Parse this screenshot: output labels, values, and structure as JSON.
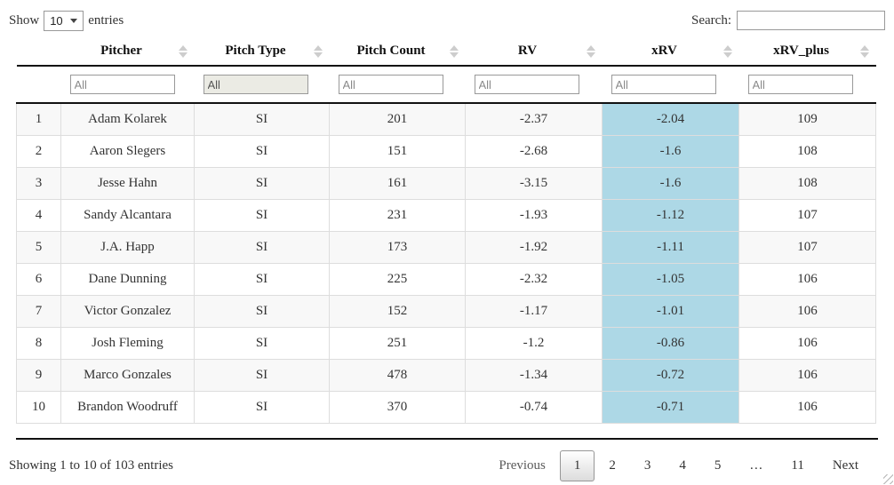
{
  "controls": {
    "show_label": "Show",
    "entries_label": "entries",
    "page_length": "10",
    "search_label": "Search:",
    "search_value": ""
  },
  "table": {
    "highlight_color": "#ADD8E6",
    "columns": [
      {
        "label": "Pitcher",
        "filter": "All",
        "filter_style": "text"
      },
      {
        "label": "Pitch Type",
        "filter": "All",
        "filter_style": "select"
      },
      {
        "label": "Pitch Count",
        "filter": "All",
        "filter_style": "text"
      },
      {
        "label": "RV",
        "filter": "All",
        "filter_style": "text"
      },
      {
        "label": "xRV",
        "filter": "All",
        "filter_style": "text"
      },
      {
        "label": "xRV_plus",
        "filter": "All",
        "filter_style": "text"
      }
    ],
    "rows": [
      {
        "index": "1",
        "pitcher": "Adam Kolarek",
        "pitch_type": "SI",
        "pitch_count": "201",
        "rv": "-2.37",
        "xrv": "-2.04",
        "xrv_plus": "109"
      },
      {
        "index": "2",
        "pitcher": "Aaron Slegers",
        "pitch_type": "SI",
        "pitch_count": "151",
        "rv": "-2.68",
        "xrv": "-1.6",
        "xrv_plus": "108"
      },
      {
        "index": "3",
        "pitcher": "Jesse Hahn",
        "pitch_type": "SI",
        "pitch_count": "161",
        "rv": "-3.15",
        "xrv": "-1.6",
        "xrv_plus": "108"
      },
      {
        "index": "4",
        "pitcher": "Sandy Alcantara",
        "pitch_type": "SI",
        "pitch_count": "231",
        "rv": "-1.93",
        "xrv": "-1.12",
        "xrv_plus": "107"
      },
      {
        "index": "5",
        "pitcher": "J.A. Happ",
        "pitch_type": "SI",
        "pitch_count": "173",
        "rv": "-1.92",
        "xrv": "-1.11",
        "xrv_plus": "107"
      },
      {
        "index": "6",
        "pitcher": "Dane Dunning",
        "pitch_type": "SI",
        "pitch_count": "225",
        "rv": "-2.32",
        "xrv": "-1.05",
        "xrv_plus": "106"
      },
      {
        "index": "7",
        "pitcher": "Victor Gonzalez",
        "pitch_type": "SI",
        "pitch_count": "152",
        "rv": "-1.17",
        "xrv": "-1.01",
        "xrv_plus": "106"
      },
      {
        "index": "8",
        "pitcher": "Josh Fleming",
        "pitch_type": "SI",
        "pitch_count": "251",
        "rv": "-1.2",
        "xrv": "-0.86",
        "xrv_plus": "106"
      },
      {
        "index": "9",
        "pitcher": "Marco Gonzales",
        "pitch_type": "SI",
        "pitch_count": "478",
        "rv": "-1.34",
        "xrv": "-0.72",
        "xrv_plus": "106"
      },
      {
        "index": "10",
        "pitcher": "Brandon Woodruff",
        "pitch_type": "SI",
        "pitch_count": "370",
        "rv": "-0.74",
        "xrv": "-0.71",
        "xrv_plus": "106"
      }
    ]
  },
  "footer": {
    "info": "Showing 1 to 10 of 103 entries",
    "pagination": {
      "previous_label": "Previous",
      "pages": [
        "1",
        "2",
        "3",
        "4",
        "5",
        "…",
        "11"
      ],
      "current_page": "1",
      "next_label": "Next"
    }
  }
}
